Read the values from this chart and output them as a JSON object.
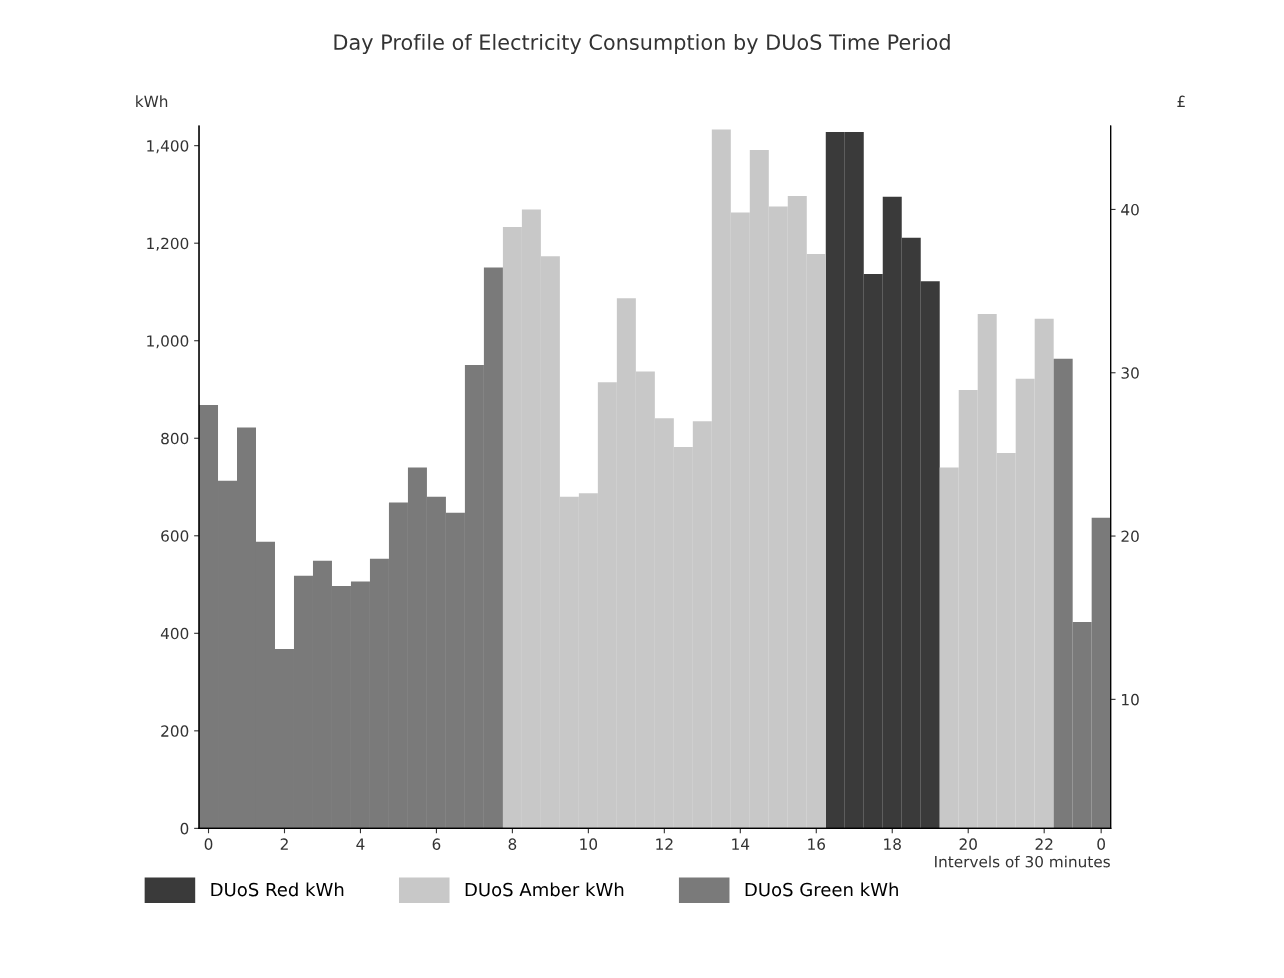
{
  "chart_data": {
    "type": "bar",
    "title": "Day Profile of Electricity Consumption by DUoS Time Period",
    "xlabel": "Intervels of 30 minutes",
    "ylabel": "kWh",
    "y2label": "£",
    "categories": [
      "0",
      null,
      null,
      null,
      "2",
      null,
      null,
      null,
      "4",
      null,
      null,
      null,
      "6",
      null,
      null,
      null,
      "8",
      null,
      null,
      null,
      "10",
      null,
      null,
      null,
      "12",
      null,
      null,
      null,
      "14",
      null,
      null,
      null,
      "16",
      null,
      null,
      null,
      "18",
      null,
      null,
      null,
      "20",
      null,
      null,
      null,
      "22",
      null,
      null,
      "0"
    ],
    "series": [
      {
        "name": "DUoS Red kWh",
        "color": "#3a3a3a",
        "values": [
          null,
          null,
          null,
          null,
          null,
          null,
          null,
          null,
          null,
          null,
          null,
          null,
          null,
          null,
          null,
          null,
          null,
          null,
          null,
          null,
          null,
          null,
          null,
          null,
          null,
          null,
          null,
          null,
          null,
          null,
          null,
          null,
          null,
          1428,
          1428,
          1137,
          1295,
          1211,
          1122,
          null,
          null,
          null,
          null,
          null,
          null,
          null,
          null,
          null
        ]
      },
      {
        "name": "DUoS Amber kWh",
        "color": "#c8c8c8",
        "values": [
          null,
          null,
          null,
          null,
          null,
          null,
          null,
          null,
          null,
          null,
          null,
          null,
          null,
          null,
          null,
          null,
          1233,
          1269,
          1173,
          680,
          687,
          915,
          1087,
          937,
          841,
          782,
          835,
          1433,
          1263,
          1391,
          1275,
          1297,
          1178,
          null,
          null,
          null,
          null,
          null,
          null,
          740,
          899,
          1055,
          770,
          922,
          1045,
          null,
          null,
          null
        ]
      },
      {
        "name": "DUoS Green kWh",
        "color": "#7a7a7a",
        "values": [
          868,
          713,
          822,
          588,
          368,
          518,
          549,
          497,
          506,
          553,
          668,
          740,
          680,
          647,
          950,
          1150,
          null,
          null,
          null,
          null,
          null,
          null,
          null,
          null,
          null,
          null,
          null,
          null,
          null,
          null,
          null,
          null,
          null,
          null,
          null,
          null,
          null,
          null,
          null,
          null,
          null,
          null,
          null,
          null,
          null,
          963,
          423,
          637
        ]
      }
    ],
    "ylim": [
      0,
      1440
    ],
    "yticks": [
      0,
      200,
      400,
      600,
      800,
      {
        "value": 1000,
        "label": "1,000"
      },
      {
        "value": 1200,
        "label": "1,200"
      },
      {
        "value": 1400,
        "label": "1,400"
      }
    ],
    "y2lim": [
      2.1,
      45.1
    ],
    "y2ticks": [
      10,
      20,
      30,
      40
    ],
    "grid": false,
    "legend": "bottom"
  }
}
